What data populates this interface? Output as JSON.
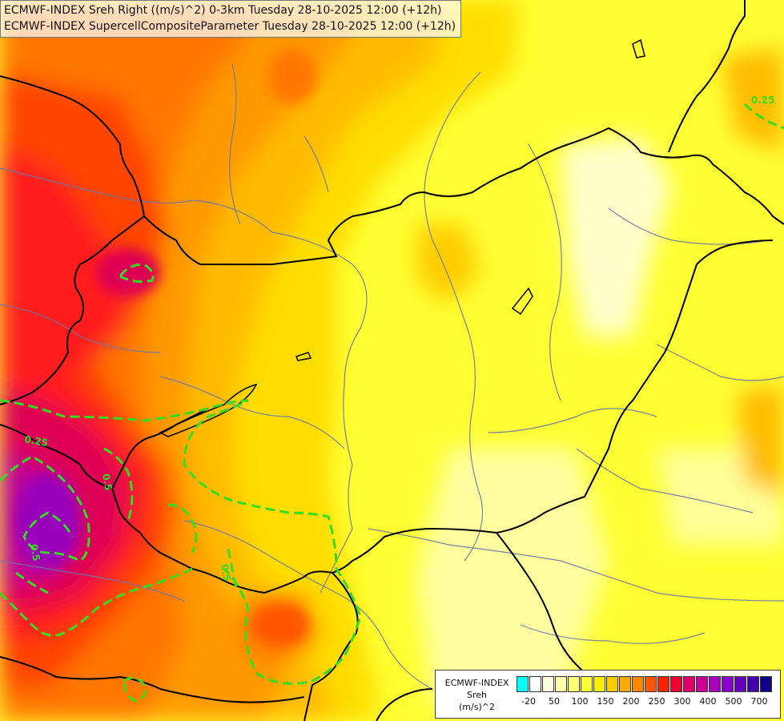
{
  "map": {
    "title_line1": "ECMWF-INDEX Sreh Right ((m/s)^2) 0-3km Tuesday 28-10-2025 12:00 (+12h)",
    "title_line2": "ECMWF-INDEX SupercellCompositeParameter Tuesday 28-10-2025 12:00 (+12h)",
    "contour_labels": [
      "0.25",
      "0.25",
      "0.5",
      "0.5",
      "0.5"
    ]
  },
  "legend": {
    "title_line1": "ECMWF-INDEX",
    "title_line2": "Sreh",
    "title_line3": "(m/s)^2",
    "colors": [
      "#00ffff",
      "#ffffff",
      "#ffffdd",
      "#ffffaa",
      "#ffff77",
      "#ffff33",
      "#ffee00",
      "#ffcc00",
      "#ffaa00",
      "#ff8800",
      "#ff5500",
      "#ff2200",
      "#ee0033",
      "#dd0066",
      "#cc0099",
      "#aa00bb",
      "#8800cc",
      "#6600bb",
      "#4400aa",
      "#110088"
    ],
    "ticks": [
      "-20",
      "50",
      "100",
      "150",
      "200",
      "250",
      "300",
      "400",
      "500",
      "700"
    ]
  }
}
